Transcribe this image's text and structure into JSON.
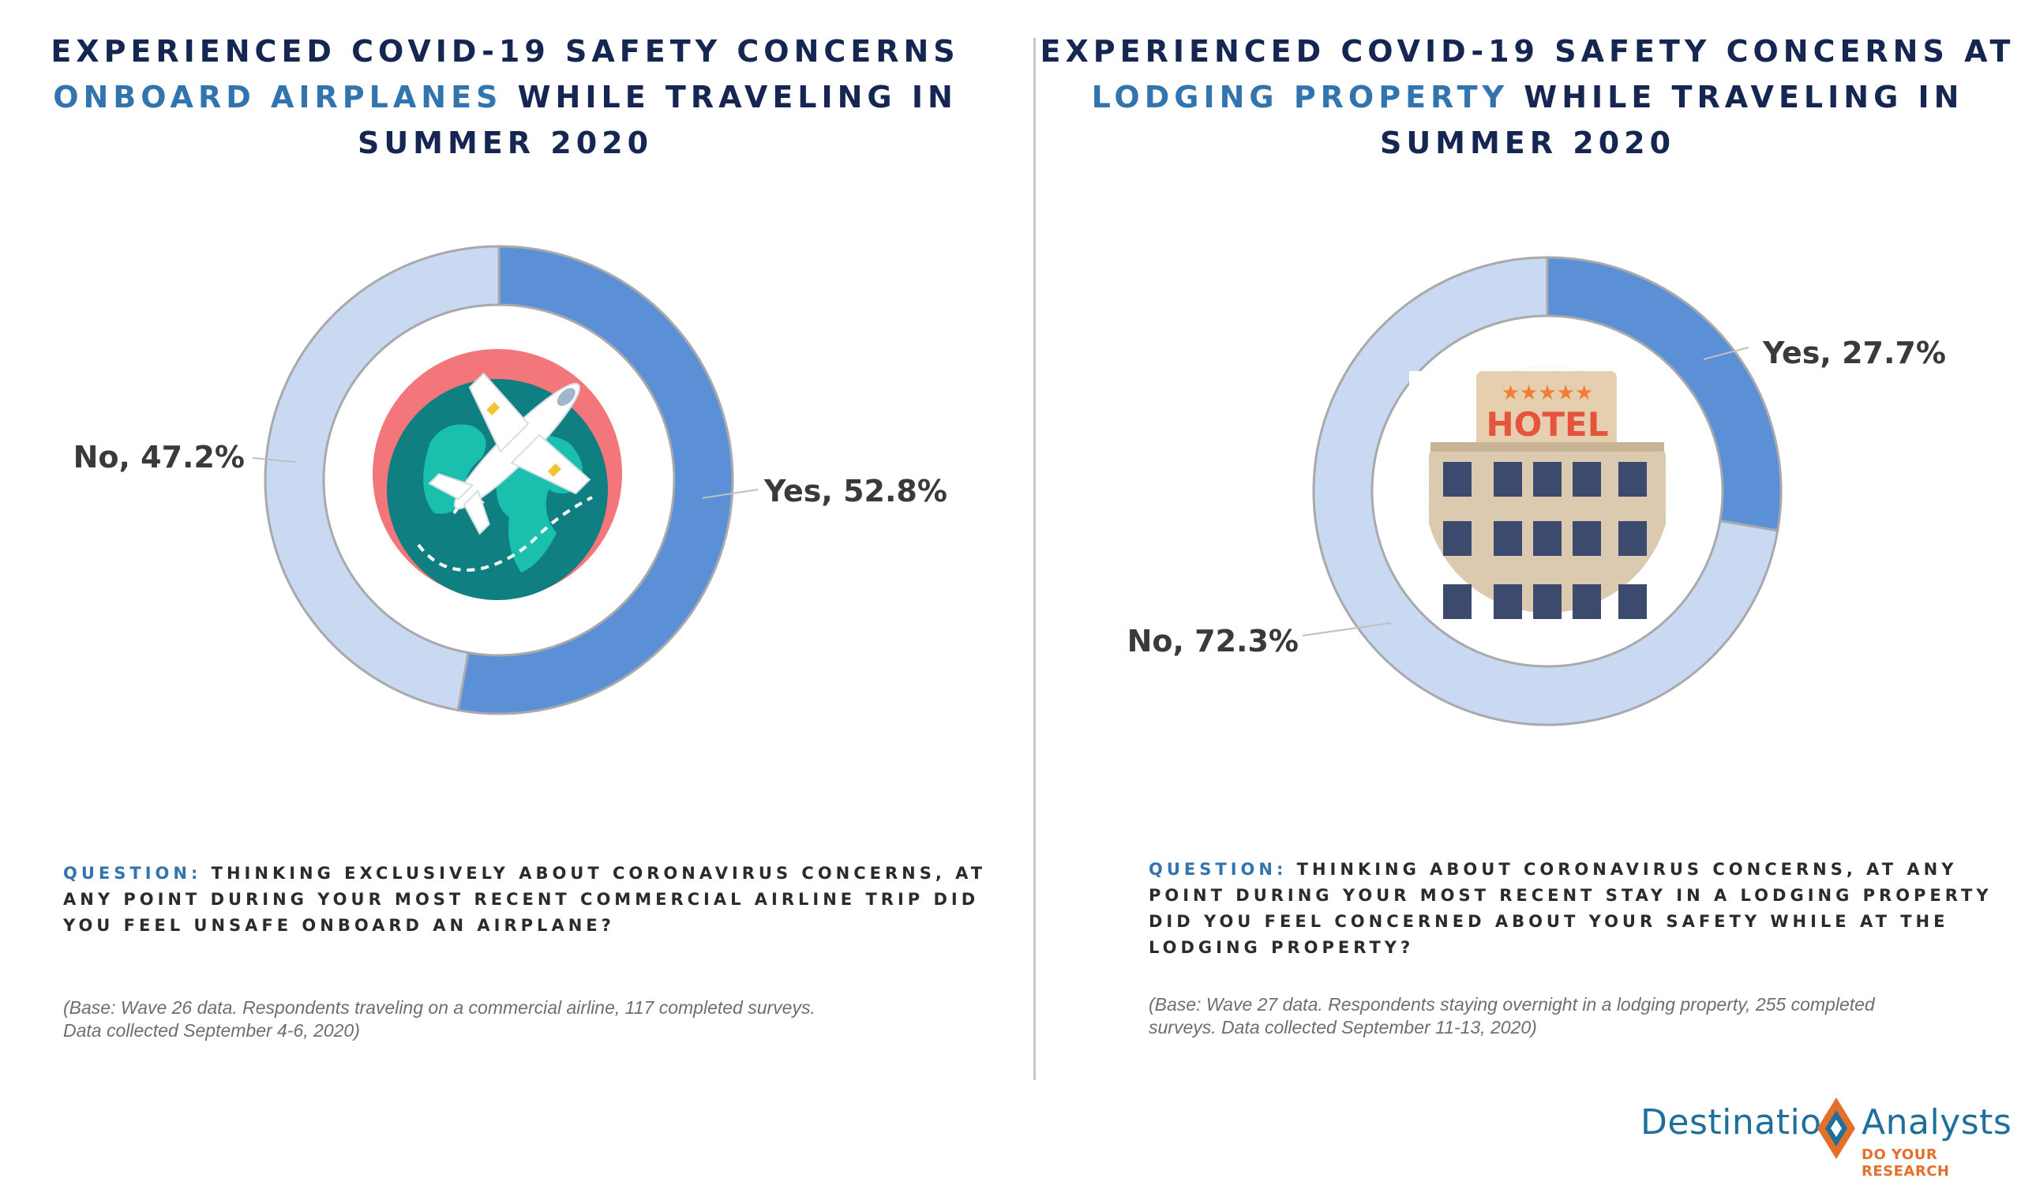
{
  "left": {
    "title_line1": "EXPERIENCED COVID-19 SAFETY CONCERNS",
    "title_accent": "ONBOARD AIRPLANES",
    "title_line2_rest": " WHILE TRAVELING IN SUMMER 2020",
    "icon": "globe-airplane-icon",
    "question_label": "QUESTION:",
    "question_text": " THINKING EXCLUSIVELY ABOUT CORONAVIRUS CONCERNS, AT ANY POINT DURING YOUR MOST RECENT COMMERCIAL AIRLINE TRIP DID YOU FEEL UNSAFE ONBOARD AN AIRPLANE?",
    "base_note": "(Base: Wave 26 data. Respondents traveling on a commercial airline, 117 completed surveys. Data collected September 4-6, 2020)"
  },
  "right": {
    "title_line1": "EXPERIENCED COVID-19 SAFETY CONCERNS AT",
    "title_accent": "LODGING PROPERTY",
    "title_line2_rest": " WHILE TRAVELING IN SUMMER 2020",
    "icon": "hotel-building-icon",
    "hotel_sign": "HOTEL",
    "question_label": "QUESTION:",
    "question_text": " THINKING ABOUT CORONAVIRUS CONCERNS, AT ANY POINT DURING YOUR MOST RECENT STAY IN A LODGING PROPERTY DID YOU FEEL CONCERNED ABOUT YOUR SAFETY WHILE AT THE LODGING PROPERTY?",
    "base_note": "(Base: Wave 27 data. Respondents staying overnight in a lodging property, 255 completed surveys. Data collected September 11-13, 2020)"
  },
  "logo": {
    "word1": "Destination",
    "word2": "Analysts",
    "tagline": "DO YOUR RESEARCH"
  },
  "colors": {
    "yes": "#5b8fd6",
    "no": "#c8d9f1",
    "title": "#142651",
    "accent": "#3274ae"
  },
  "chart_data": [
    {
      "type": "pie",
      "donut": true,
      "categories": [
        "Yes",
        "No"
      ],
      "values": [
        52.8,
        47.2
      ],
      "labels": [
        "Yes, 52.8%",
        "No, 47.2%"
      ],
      "title": "EXPERIENCED COVID-19 SAFETY CONCERNS ONBOARD AIRPLANES WHILE TRAVELING IN SUMMER 2020"
    },
    {
      "type": "pie",
      "donut": true,
      "categories": [
        "Yes",
        "No"
      ],
      "values": [
        27.7,
        72.3
      ],
      "labels": [
        "Yes, 27.7%",
        "No, 72.3%"
      ],
      "title": "EXPERIENCED COVID-19 SAFETY CONCERNS AT LODGING PROPERTY WHILE TRAVELING IN SUMMER 2020"
    }
  ]
}
